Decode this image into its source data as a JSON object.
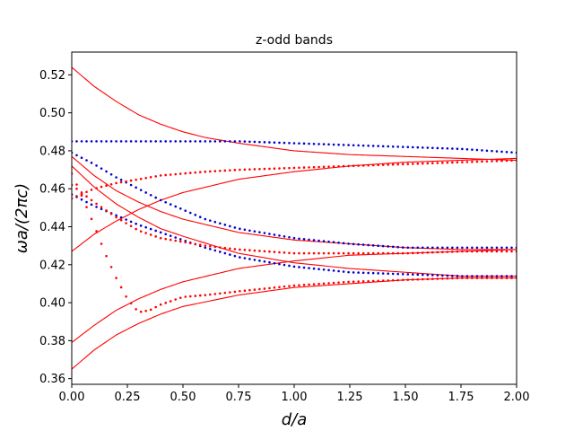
{
  "chart_data": {
    "type": "line",
    "title": "z-odd bands",
    "xlabel": "d/a",
    "ylabel": "ωa/(2πc)",
    "xlim": [
      0,
      2
    ],
    "ylim": [
      0.357,
      0.532
    ],
    "xticks": [
      "0.00",
      "0.25",
      "0.50",
      "0.75",
      "1.00",
      "1.25",
      "1.50",
      "1.75",
      "2.00"
    ],
    "yticks": [
      "0.36",
      "0.38",
      "0.40",
      "0.42",
      "0.44",
      "0.46",
      "0.48",
      "0.50",
      "0.52"
    ],
    "xtick_values": [
      0,
      0.25,
      0.5,
      0.75,
      1.0,
      1.25,
      1.5,
      1.75,
      2.0
    ],
    "ytick_values": [
      0.36,
      0.38,
      0.4,
      0.42,
      0.44,
      0.46,
      0.48,
      0.5,
      0.52
    ],
    "grid": false,
    "legend": "none",
    "colors": {
      "red": "#ff0000",
      "blue": "#0000cc",
      "axis": "#000000"
    },
    "series": [
      {
        "style": "red-line",
        "x": [
          0,
          0.1,
          0.2,
          0.3,
          0.4,
          0.5,
          0.6,
          0.75,
          1.0,
          1.25,
          1.5,
          1.75,
          2.0
        ],
        "y": [
          0.524,
          0.514,
          0.506,
          0.499,
          0.494,
          0.49,
          0.487,
          0.484,
          0.48,
          0.478,
          0.477,
          0.476,
          0.475
        ]
      },
      {
        "style": "red-line",
        "x": [
          0,
          0.1,
          0.2,
          0.3,
          0.4,
          0.5,
          0.75,
          1.0,
          1.25,
          1.5,
          1.75,
          2.0
        ],
        "y": [
          0.427,
          0.436,
          0.443,
          0.449,
          0.454,
          0.458,
          0.465,
          0.469,
          0.472,
          0.474,
          0.475,
          0.476
        ]
      },
      {
        "style": "red-line",
        "x": [
          0,
          0.1,
          0.2,
          0.3,
          0.4,
          0.5,
          0.75,
          1.0,
          1.25,
          1.5,
          1.75,
          2.0
        ],
        "y": [
          0.477,
          0.467,
          0.459,
          0.453,
          0.448,
          0.444,
          0.437,
          0.433,
          0.431,
          0.429,
          0.428,
          0.428
        ]
      },
      {
        "style": "red-line",
        "x": [
          0,
          0.1,
          0.2,
          0.3,
          0.4,
          0.5,
          0.75,
          1.0,
          1.25,
          1.5,
          1.75,
          2.0
        ],
        "y": [
          0.472,
          0.461,
          0.452,
          0.445,
          0.439,
          0.435,
          0.426,
          0.421,
          0.418,
          0.416,
          0.414,
          0.414
        ]
      },
      {
        "style": "red-line",
        "x": [
          0,
          0.1,
          0.2,
          0.3,
          0.4,
          0.5,
          0.75,
          1.0,
          1.25,
          1.5,
          1.75,
          2.0
        ],
        "y": [
          0.379,
          0.388,
          0.396,
          0.402,
          0.407,
          0.411,
          0.418,
          0.422,
          0.425,
          0.426,
          0.427,
          0.428
        ]
      },
      {
        "style": "red-line",
        "x": [
          0,
          0.1,
          0.2,
          0.3,
          0.4,
          0.5,
          0.75,
          1.0,
          1.25,
          1.5,
          1.75,
          2.0
        ],
        "y": [
          0.365,
          0.375,
          0.383,
          0.389,
          0.394,
          0.398,
          0.404,
          0.408,
          0.41,
          0.412,
          0.413,
          0.413
        ]
      },
      {
        "style": "blue-dots",
        "x": [
          0,
          0.25,
          0.5,
          0.75,
          1.0,
          1.25,
          1.5,
          1.75,
          2.0
        ],
        "y": [
          0.485,
          0.485,
          0.485,
          0.485,
          0.484,
          0.483,
          0.482,
          0.481,
          0.479
        ]
      },
      {
        "style": "blue-dots",
        "x": [
          0,
          0.1,
          0.2,
          0.3,
          0.4,
          0.5,
          0.6,
          0.75,
          1.0,
          1.25,
          1.5,
          1.75,
          2.0
        ],
        "y": [
          0.479,
          0.473,
          0.466,
          0.46,
          0.454,
          0.449,
          0.444,
          0.439,
          0.434,
          0.431,
          0.429,
          0.429,
          0.429
        ]
      },
      {
        "style": "blue-dots",
        "x": [
          0,
          0.1,
          0.2,
          0.3,
          0.4,
          0.5,
          0.6,
          0.75,
          1.0,
          1.25,
          1.5,
          1.75,
          2.0
        ],
        "y": [
          0.457,
          0.451,
          0.446,
          0.441,
          0.437,
          0.433,
          0.429,
          0.424,
          0.419,
          0.416,
          0.415,
          0.414,
          0.414
        ]
      },
      {
        "style": "red-dots",
        "x": [
          0,
          0.1,
          0.2,
          0.3,
          0.4,
          0.5,
          0.6,
          0.75,
          1.0,
          1.25,
          1.5,
          1.75,
          2.0
        ],
        "y": [
          0.455,
          0.46,
          0.463,
          0.465,
          0.467,
          0.468,
          0.469,
          0.47,
          0.471,
          0.472,
          0.473,
          0.474,
          0.475
        ]
      },
      {
        "style": "red-dots",
        "x": [
          0,
          0.1,
          0.2,
          0.3,
          0.4,
          0.5,
          0.6,
          0.75,
          1.0,
          1.25,
          1.5,
          1.75,
          2.0
        ],
        "y": [
          0.462,
          0.453,
          0.445,
          0.438,
          0.434,
          0.432,
          0.43,
          0.428,
          0.426,
          0.426,
          0.426,
          0.427,
          0.427
        ]
      },
      {
        "style": "red-dots",
        "x": [
          0,
          0.05,
          0.1,
          0.15,
          0.2,
          0.25,
          0.3,
          0.35,
          0.4,
          0.5,
          0.6,
          0.75,
          1.0,
          1.25,
          1.5,
          1.75,
          2.0
        ],
        "y": [
          0.468,
          0.455,
          0.441,
          0.426,
          0.413,
          0.402,
          0.395,
          0.396,
          0.399,
          0.403,
          0.404,
          0.406,
          0.409,
          0.411,
          0.412,
          0.413,
          0.413
        ]
      }
    ]
  }
}
